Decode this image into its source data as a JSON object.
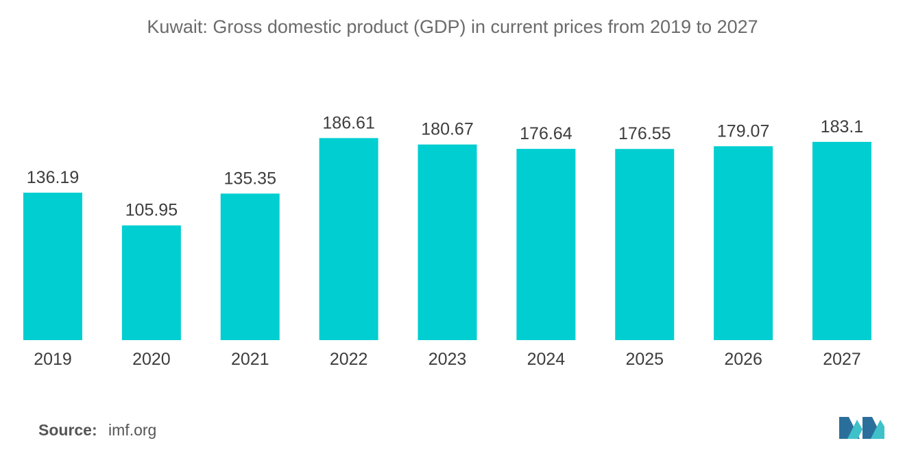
{
  "chart_data": {
    "type": "bar",
    "title": "Kuwait: Gross domestic product (GDP) in current prices from 2019 to 2027",
    "categories": [
      "2019",
      "2020",
      "2021",
      "2022",
      "2023",
      "2024",
      "2025",
      "2026",
      "2027"
    ],
    "values": [
      136.19,
      105.95,
      135.35,
      186.61,
      180.67,
      176.64,
      176.55,
      179.07,
      183.1
    ],
    "value_labels": [
      "136.19",
      "105.95",
      "135.35",
      "186.61",
      "180.67",
      "176.64",
      "176.55",
      "179.07",
      "183.1"
    ],
    "xlabel": "",
    "ylabel": "",
    "ylim": [
      0,
      190
    ],
    "grid": false,
    "bar_color": "#00ced1"
  },
  "source": {
    "label": "Source:",
    "value": "imf.org"
  },
  "logo": {
    "icon": "mordor-intelligence-logo",
    "colors": [
      "#2a6f9b",
      "#3ec1c9"
    ]
  }
}
